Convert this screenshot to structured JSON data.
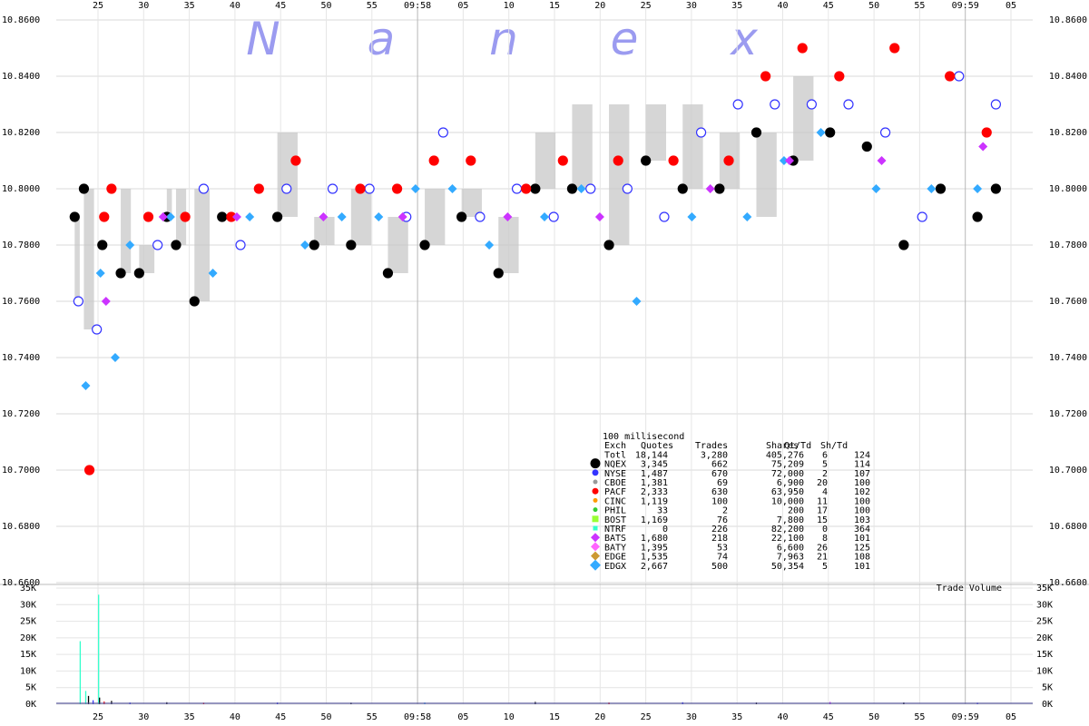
{
  "watermark": [
    "N",
    "a",
    "n",
    "e",
    "x"
  ],
  "chart_data": [
    {
      "type": "scatter",
      "title": "",
      "ylim": [
        10.66,
        10.86
      ],
      "y_ticks": [
        "10.6600",
        "10.6800",
        "10.7000",
        "10.7200",
        "10.7400",
        "10.7600",
        "10.7800",
        "10.8000",
        "10.8200",
        "10.8400",
        "10.8600"
      ],
      "x_ticks": [
        "25",
        "30",
        "35",
        "40",
        "45",
        "50",
        "55",
        "09:58",
        "05",
        "10",
        "15",
        "20",
        "25",
        "30",
        "35",
        "40",
        "45",
        "50",
        "55",
        "09:59",
        "05"
      ],
      "grid": true,
      "legend_position": "center-right",
      "legend": {
        "caption": "100 millisecond",
        "header": [
          "Exch",
          "Quotes",
          "Trades",
          "Shares",
          "Qt/Td",
          "Sh/Td"
        ],
        "rows": [
          {
            "exch": "Totl",
            "quotes": "18,144",
            "trades": "3,280",
            "shares": "405,276",
            "qt_td": "6",
            "sh_td": "124",
            "color": "",
            "marker": "none"
          },
          {
            "exch": "NQEX",
            "quotes": "3,345",
            "trades": "662",
            "shares": "75,209",
            "qt_td": "5",
            "sh_td": "114",
            "color": "#000000",
            "marker": "circle-lg"
          },
          {
            "exch": "NYSE",
            "quotes": "1,487",
            "trades": "670",
            "shares": "72,000",
            "qt_td": "2",
            "sh_td": "107",
            "color": "#3333ff",
            "marker": "circle"
          },
          {
            "exch": "CBOE",
            "quotes": "1,381",
            "trades": "69",
            "shares": "6,900",
            "qt_td": "20",
            "sh_td": "100",
            "color": "#999999",
            "marker": "circle-sm"
          },
          {
            "exch": "PACF",
            "quotes": "2,333",
            "trades": "630",
            "shares": "63,950",
            "qt_td": "4",
            "sh_td": "102",
            "color": "#ff0000",
            "marker": "circle"
          },
          {
            "exch": "CINC",
            "quotes": "1,119",
            "trades": "100",
            "shares": "10,000",
            "qt_td": "11",
            "sh_td": "100",
            "color": "#ff9900",
            "marker": "circle-sm"
          },
          {
            "exch": "PHIL",
            "quotes": "33",
            "trades": "2",
            "shares": "200",
            "qt_td": "17",
            "sh_td": "100",
            "color": "#33cc33",
            "marker": "circle-sm"
          },
          {
            "exch": "BOST",
            "quotes": "1,169",
            "trades": "76",
            "shares": "7,800",
            "qt_td": "15",
            "sh_td": "103",
            "color": "#99ff33",
            "marker": "square"
          },
          {
            "exch": "NTRF",
            "quotes": "0",
            "trades": "226",
            "shares": "82,200",
            "qt_td": "0",
            "sh_td": "364",
            "color": "#33ffcc",
            "marker": "square-sm"
          },
          {
            "exch": "BATS",
            "quotes": "1,680",
            "trades": "218",
            "shares": "22,100",
            "qt_td": "8",
            "sh_td": "101",
            "color": "#cc33ff",
            "marker": "diamond"
          },
          {
            "exch": "BATY",
            "quotes": "1,395",
            "trades": "53",
            "shares": "6,600",
            "qt_td": "26",
            "sh_td": "125",
            "color": "#ff66ff",
            "marker": "diamond"
          },
          {
            "exch": "EDGE",
            "quotes": "1,535",
            "trades": "74",
            "shares": "7,963",
            "qt_td": "21",
            "sh_td": "108",
            "color": "#cc9933",
            "marker": "diamond"
          },
          {
            "exch": "EDGX",
            "quotes": "2,667",
            "trades": "500",
            "shares": "50,354",
            "qt_td": "5",
            "sh_td": "101",
            "color": "#33aaff",
            "marker": "diamond-lg"
          }
        ]
      },
      "series": [
        {
          "color": "#000000",
          "points": [
            [
              1.0,
              10.79
            ],
            [
              1.5,
              10.8
            ],
            [
              2.5,
              10.78
            ],
            [
              3.5,
              10.77
            ],
            [
              4.5,
              10.77
            ],
            [
              6.0,
              10.79
            ],
            [
              6.5,
              10.78
            ],
            [
              7.5,
              10.76
            ],
            [
              9.0,
              10.79
            ],
            [
              12.0,
              10.79
            ],
            [
              14.0,
              10.78
            ],
            [
              16.0,
              10.78
            ],
            [
              18.0,
              10.77
            ],
            [
              20.0,
              10.78
            ],
            [
              22.0,
              10.79
            ],
            [
              24.0,
              10.77
            ],
            [
              26.0,
              10.8
            ],
            [
              28.0,
              10.8
            ],
            [
              30.0,
              10.78
            ],
            [
              32.0,
              10.81
            ],
            [
              34.0,
              10.8
            ],
            [
              36.0,
              10.8
            ],
            [
              38.0,
              10.82
            ],
            [
              40.0,
              10.81
            ],
            [
              42.0,
              10.82
            ],
            [
              44.0,
              10.815
            ],
            [
              46.0,
              10.78
            ],
            [
              48.0,
              10.8
            ],
            [
              50.0,
              10.79
            ],
            [
              51.0,
              10.8
            ]
          ]
        },
        {
          "color": "#3333ff",
          "points": [
            [
              1.2,
              10.76
            ],
            [
              2.2,
              10.75
            ],
            [
              5.5,
              10.78
            ],
            [
              8.0,
              10.8
            ],
            [
              10.0,
              10.78
            ],
            [
              12.5,
              10.8
            ],
            [
              15.0,
              10.8
            ],
            [
              17.0,
              10.8
            ],
            [
              19.0,
              10.79
            ],
            [
              21.0,
              10.82
            ],
            [
              23.0,
              10.79
            ],
            [
              25.0,
              10.8
            ],
            [
              27.0,
              10.79
            ],
            [
              29.0,
              10.8
            ],
            [
              31.0,
              10.8
            ],
            [
              33.0,
              10.79
            ],
            [
              35.0,
              10.82
            ],
            [
              37.0,
              10.83
            ],
            [
              39.0,
              10.83
            ],
            [
              41.0,
              10.83
            ],
            [
              43.0,
              10.83
            ],
            [
              45.0,
              10.82
            ],
            [
              47.0,
              10.79
            ],
            [
              49.0,
              10.84
            ],
            [
              51.0,
              10.83
            ]
          ]
        },
        {
          "color": "#ff0000",
          "points": [
            [
              1.8,
              10.7
            ],
            [
              2.6,
              10.79
            ],
            [
              3.0,
              10.8
            ],
            [
              5.0,
              10.79
            ],
            [
              7.0,
              10.79
            ],
            [
              9.5,
              10.79
            ],
            [
              11.0,
              10.8
            ],
            [
              13.0,
              10.81
            ],
            [
              16.5,
              10.8
            ],
            [
              18.5,
              10.8
            ],
            [
              20.5,
              10.81
            ],
            [
              22.5,
              10.81
            ],
            [
              25.5,
              10.8
            ],
            [
              27.5,
              10.81
            ],
            [
              30.5,
              10.81
            ],
            [
              33.5,
              10.81
            ],
            [
              36.5,
              10.81
            ],
            [
              38.5,
              10.84
            ],
            [
              40.5,
              10.85
            ],
            [
              42.5,
              10.84
            ],
            [
              45.5,
              10.85
            ],
            [
              48.5,
              10.84
            ],
            [
              50.5,
              10.82
            ]
          ]
        },
        {
          "color": "#33aaff",
          "points": [
            [
              1.6,
              10.73
            ],
            [
              2.4,
              10.77
            ],
            [
              3.2,
              10.74
            ],
            [
              4.0,
              10.78
            ],
            [
              6.2,
              10.79
            ],
            [
              8.5,
              10.77
            ],
            [
              10.5,
              10.79
            ],
            [
              13.5,
              10.78
            ],
            [
              15.5,
              10.79
            ],
            [
              17.5,
              10.79
            ],
            [
              19.5,
              10.8
            ],
            [
              21.5,
              10.8
            ],
            [
              23.5,
              10.78
            ],
            [
              26.5,
              10.79
            ],
            [
              28.5,
              10.8
            ],
            [
              31.5,
              10.76
            ],
            [
              34.5,
              10.79
            ],
            [
              37.5,
              10.79
            ],
            [
              39.5,
              10.81
            ],
            [
              41.5,
              10.82
            ],
            [
              44.5,
              10.8
            ],
            [
              47.5,
              10.8
            ],
            [
              50.0,
              10.8
            ]
          ]
        },
        {
          "color": "#cc33ff",
          "points": [
            [
              2.7,
              10.76
            ],
            [
              5.8,
              10.79
            ],
            [
              9.8,
              10.79
            ],
            [
              14.5,
              10.79
            ],
            [
              18.8,
              10.79
            ],
            [
              24.5,
              10.79
            ],
            [
              29.5,
              10.79
            ],
            [
              35.5,
              10.8
            ],
            [
              39.8,
              10.81
            ],
            [
              44.8,
              10.81
            ],
            [
              50.3,
              10.815
            ]
          ]
        }
      ],
      "annotations": [
        "Trade Volume"
      ]
    },
    {
      "type": "bar",
      "title": "",
      "ylabel": "Trade Volume",
      "ylim": [
        0,
        35000
      ],
      "y_ticks": [
        "0K",
        "5K",
        "10K",
        "15K",
        "20K",
        "25K",
        "30K",
        "35K"
      ],
      "x_ticks": [
        "25",
        "30",
        "35",
        "40",
        "45",
        "50",
        "55",
        "09:58",
        "05",
        "10",
        "15",
        "20",
        "25",
        "30",
        "35",
        "40",
        "45",
        "50",
        "55",
        "09:59",
        "05"
      ],
      "bars": [
        {
          "x": 1.3,
          "value": 19000,
          "color": "#33ffcc"
        },
        {
          "x": 1.6,
          "value": 4000,
          "color": "#33ffcc"
        },
        {
          "x": 1.75,
          "value": 2500,
          "color": "#000000"
        },
        {
          "x": 2.0,
          "value": 1200,
          "color": "#3333ff"
        },
        {
          "x": 2.3,
          "value": 33000,
          "color": "#33ffcc"
        },
        {
          "x": 2.35,
          "value": 2000,
          "color": "#000000"
        },
        {
          "x": 2.6,
          "value": 800,
          "color": "#ff0000"
        },
        {
          "x": 3.0,
          "value": 1000,
          "color": "#000000"
        },
        {
          "x": 4.0,
          "value": 500,
          "color": "#3333ff"
        },
        {
          "x": 6.0,
          "value": 600,
          "color": "#000000"
        },
        {
          "x": 8.0,
          "value": 400,
          "color": "#ff0000"
        },
        {
          "x": 12.0,
          "value": 500,
          "color": "#3333ff"
        },
        {
          "x": 16.0,
          "value": 400,
          "color": "#000000"
        },
        {
          "x": 20.0,
          "value": 500,
          "color": "#33aaff"
        },
        {
          "x": 26.0,
          "value": 700,
          "color": "#000000"
        },
        {
          "x": 30.0,
          "value": 500,
          "color": "#ff0000"
        },
        {
          "x": 34.0,
          "value": 600,
          "color": "#3333ff"
        },
        {
          "x": 38.0,
          "value": 500,
          "color": "#000000"
        },
        {
          "x": 42.0,
          "value": 700,
          "color": "#cc33ff"
        },
        {
          "x": 46.0,
          "value": 500,
          "color": "#000000"
        },
        {
          "x": 50.0,
          "value": 400,
          "color": "#3333ff"
        }
      ]
    }
  ]
}
